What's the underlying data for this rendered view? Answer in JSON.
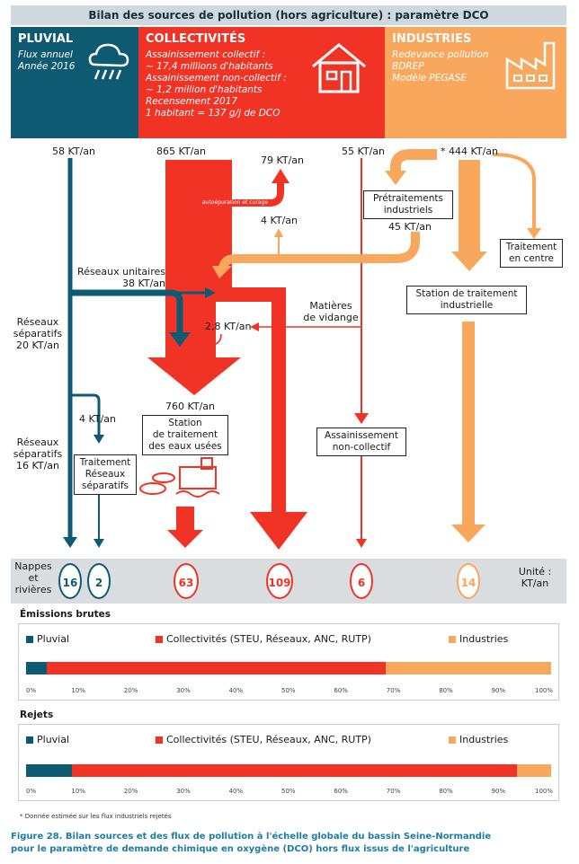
{
  "title": "Bilan des sources de pollution (hors agriculture) : paramètre DCO",
  "panels": {
    "pluvial": {
      "header": "PLUVIAL",
      "lines": [
        "Flux annuel",
        "Année 2016"
      ]
    },
    "collectivites": {
      "header": "COLLECTIVITÉS",
      "lines": [
        "Assainissement collectif :",
        "~ 17,4 millions d'habitants",
        "Assainissement non-collectif :",
        "~ 1,2 million d'habitants",
        "Recensement 2017",
        "1 habitant = 137 g/j de DCO"
      ]
    },
    "industries": {
      "header": "INDUSTRIES",
      "lines": [
        "Redevance pollution",
        "BDREP",
        "Modèle PEGASE"
      ]
    }
  },
  "flows": {
    "pluvial_in": "58 KT/an",
    "coll_in": "865 KT/an",
    "anc_in": "55 KT/an",
    "ind_in": "* 444 KT/an",
    "autoepuration_value": "79 KT/an",
    "autoepuration_label": "autoépuration et curage",
    "upflow": "4 KT/an",
    "pretraitement_value": "45 KT/an",
    "reseaux_unitaires": [
      "Réseaux unitaires",
      "38 KT/an"
    ],
    "reseaux_separatifs_20": [
      "Réseaux",
      "séparatifs",
      "20 KT/an"
    ],
    "reseaux_separatifs_16": [
      "Réseaux",
      "séparatifs",
      "16 KT/an"
    ],
    "matieres_vidange": [
      "Matières",
      "de vidange"
    ],
    "v28": "2,8 KT/an",
    "v760": "760 KT/an",
    "v4b": "4 KT/an"
  },
  "boxes": {
    "pretraitements": [
      "Prétraitements",
      "industriels"
    ],
    "traitement_centre": [
      "Traitement",
      "en centre"
    ],
    "station_industrielle": [
      "Station de traitement",
      "industrielle"
    ],
    "steu": [
      "Station",
      "de traitement",
      "des eaux usées"
    ],
    "anc": [
      "Assainissement",
      "non-collectif"
    ],
    "traitement_separatifs": [
      "Traitement",
      "Réseaux",
      "séparatifs"
    ]
  },
  "band": {
    "left_label": [
      "Nappes",
      "et",
      "rivières"
    ],
    "right_label": [
      "Unité :",
      "KT/an"
    ],
    "values": [
      "16",
      "2",
      "63",
      "109",
      "6",
      "14"
    ]
  },
  "colors": {
    "pluvial": "#0e5a73",
    "collectivites": "#f13326",
    "industries": "#f9a75c"
  },
  "emissions": {
    "title": "Émissions brutes",
    "legend": [
      "Pluvial",
      "Collectivités (STEU, Réseaux, ANC, RUTP)",
      "Industries"
    ],
    "shares": [
      0.04,
      0.645,
      0.315
    ]
  },
  "rejets": {
    "title": "Rejets",
    "legend": [
      "Pluvial",
      "Collectivités (STEU, Réseaux, ANC, RUTP)",
      "Industries"
    ],
    "shares": [
      0.088,
      0.847,
      0.065
    ]
  },
  "axis_ticks": [
    "0%",
    "10%",
    "20%",
    "30%",
    "40%",
    "50%",
    "60%",
    "70%",
    "80%",
    "90%",
    "100%"
  ],
  "note": "* Donnée estimée sur les flux industriels rejetés",
  "caption": [
    "Figure 28. Bilan sources et des flux de pollution à l'échelle globale du bassin Seine-Normandie",
    "pour le paramètre de demande chimique en oxygène (DCO) hors flux issus de l'agriculture"
  ]
}
